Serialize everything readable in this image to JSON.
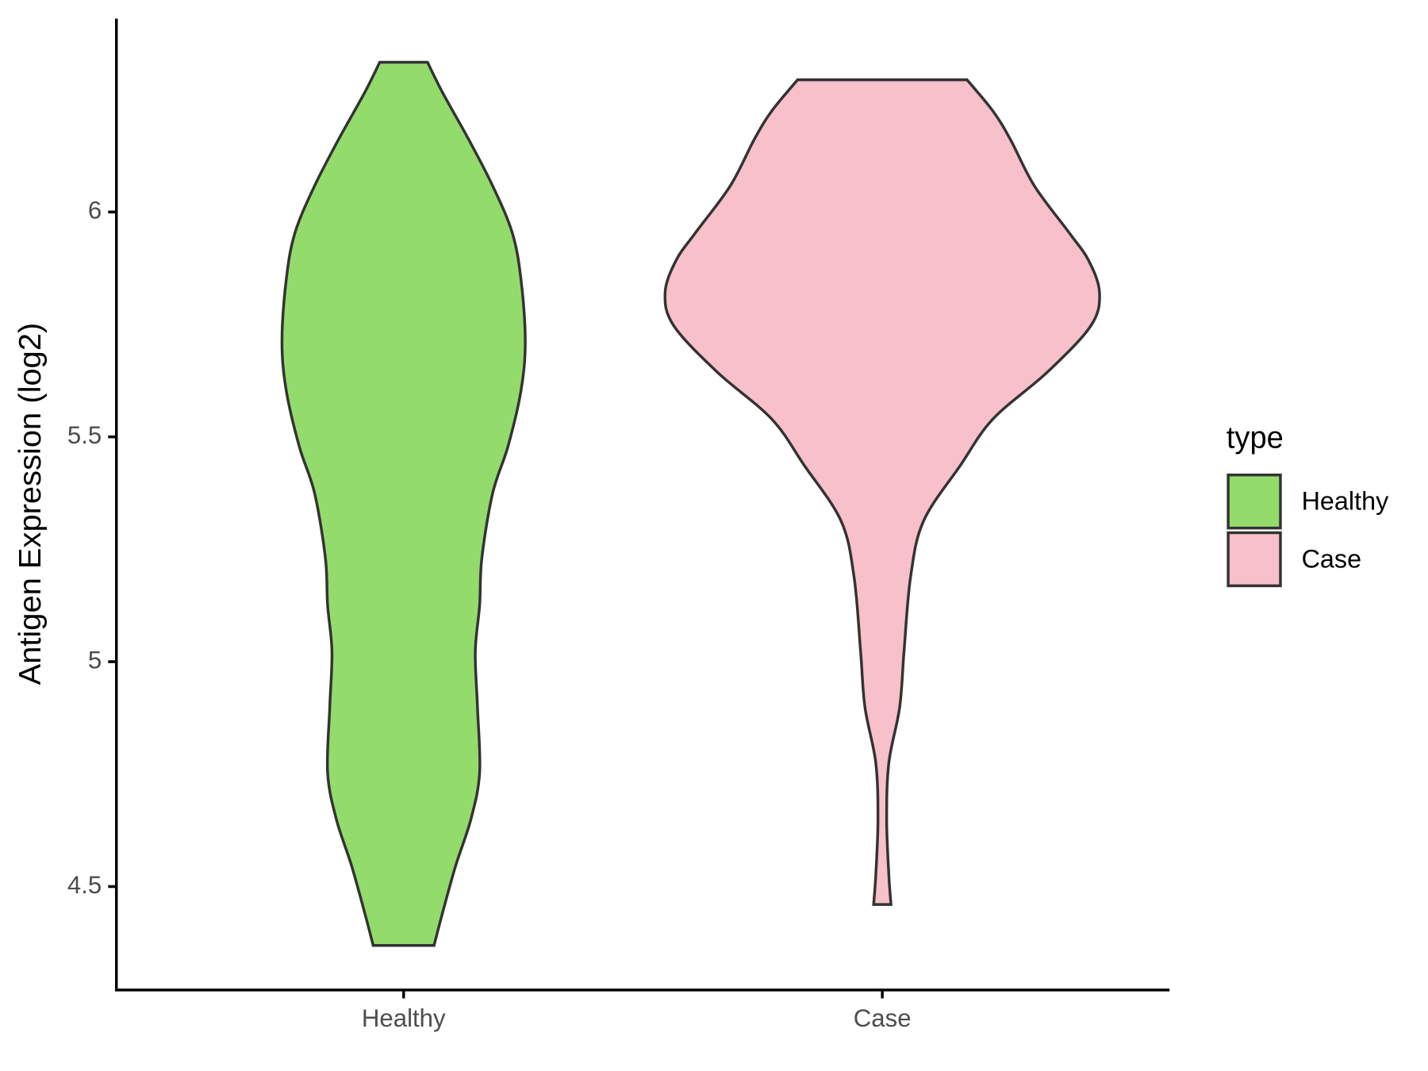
{
  "chart_data": {
    "type": "violin",
    "y_label": "Antigen Expression (log2)",
    "categories": [
      "Healthy",
      "Case"
    ],
    "legend_title": "type",
    "legend": "right",
    "ylim": [
      4.27,
      6.43
    ],
    "yticks": [
      4.5,
      5.0,
      5.5,
      6.0
    ],
    "series": [
      {
        "name": "Healthy",
        "color": "#93dc6b",
        "y": [
          6.333,
          6.265,
          6.161,
          6.058,
          5.954,
          5.851,
          5.712,
          5.602,
          5.478,
          5.375,
          5.23,
          5.126,
          5.023,
          4.899,
          4.754,
          4.65,
          4.547,
          4.443,
          4.369
        ],
        "widths": [
          0.11,
          0.18,
          0.3,
          0.41,
          0.5,
          0.54,
          0.56,
          0.54,
          0.48,
          0.41,
          0.36,
          0.35,
          0.33,
          0.34,
          0.35,
          0.31,
          0.24,
          0.18,
          0.14
        ]
      },
      {
        "name": "Case",
        "color": "#f8c0cb",
        "y": [
          6.294,
          6.224,
          6.161,
          6.058,
          5.954,
          5.892,
          5.82,
          5.747,
          5.644,
          5.54,
          5.437,
          5.313,
          5.188,
          5.023,
          4.899,
          4.775,
          4.65,
          4.526,
          4.46
        ],
        "widths": [
          0.39,
          0.51,
          0.59,
          0.7,
          0.86,
          0.95,
          1.0,
          0.96,
          0.76,
          0.51,
          0.36,
          0.19,
          0.13,
          0.1,
          0.08,
          0.03,
          0.02,
          0.03,
          0.04
        ]
      }
    ]
  }
}
